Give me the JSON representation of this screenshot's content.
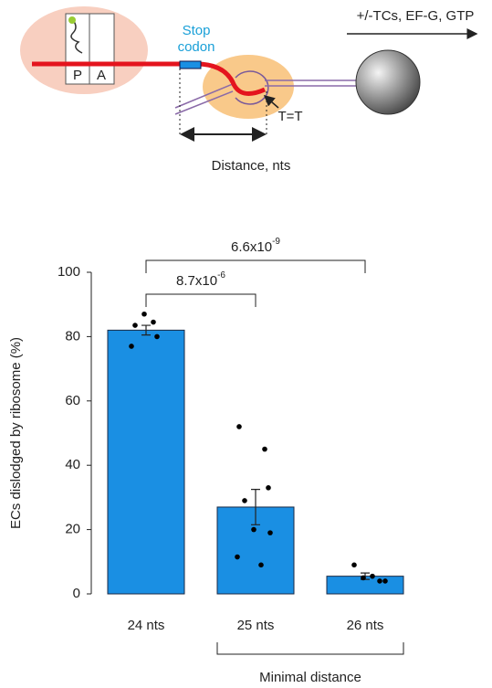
{
  "diagram": {
    "p_site": "P",
    "a_site": "A",
    "stop_codon": [
      "Stop",
      "codon"
    ],
    "conditions": "+/-TCs, EF-G, GTP",
    "template": "T=T",
    "distance": "Distance, nts"
  },
  "chart_data": {
    "type": "bar",
    "ylabel": "ECs dislodged by ribosome (%)",
    "categories": [
      "24 nts",
      "25 nts",
      "26 nts"
    ],
    "values": [
      82,
      27,
      5.5
    ],
    "errors": [
      1.5,
      5.5,
      1
    ],
    "points": [
      [
        87,
        84.5,
        83.5,
        80,
        77
      ],
      [
        52,
        45,
        33,
        29,
        20,
        19,
        11.5,
        9
      ],
      [
        9,
        5.5,
        5,
        4,
        4
      ]
    ],
    "color": "#1a8fe3",
    "ylim": [
      0,
      100
    ],
    "yticks": [
      0,
      20,
      40,
      60,
      80,
      100
    ],
    "significance": [
      {
        "from": 0,
        "to": 1,
        "base": "8.7x10",
        "exponent": "-6"
      },
      {
        "from": 0,
        "to": 2,
        "base": "6.6x10",
        "exponent": "-9"
      }
    ],
    "group_label": {
      "from": 1,
      "to": 2,
      "text": "Minimal distance"
    }
  }
}
